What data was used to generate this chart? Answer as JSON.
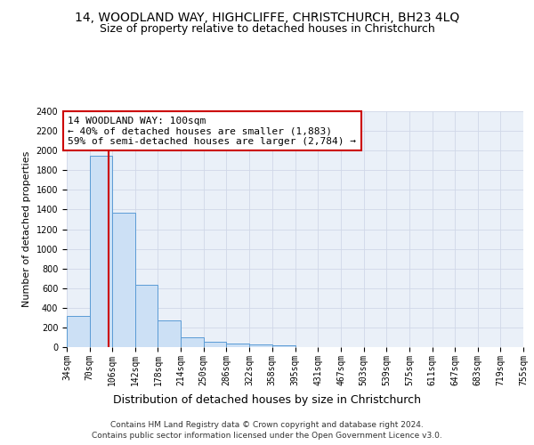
{
  "title_line1": "14, WOODLAND WAY, HIGHCLIFFE, CHRISTCHURCH, BH23 4LQ",
  "title_line2": "Size of property relative to detached houses in Christchurch",
  "xlabel": "Distribution of detached houses by size in Christchurch",
  "ylabel": "Number of detached properties",
  "bar_edges": [
    34,
    70,
    106,
    142,
    178,
    214,
    250,
    286,
    322,
    358,
    395,
    431,
    467,
    503,
    539,
    575,
    611,
    647,
    683,
    719,
    755
  ],
  "bar_heights": [
    315,
    1950,
    1370,
    630,
    275,
    100,
    50,
    38,
    30,
    22,
    0,
    0,
    0,
    0,
    0,
    0,
    0,
    0,
    0,
    0
  ],
  "bar_color": "#cce0f5",
  "bar_edgecolor": "#5b9bd5",
  "grid_color": "#d0d8e8",
  "background_color": "#eaf0f8",
  "vline_x": 100,
  "vline_color": "#cc0000",
  "annotation_text": "14 WOODLAND WAY: 100sqm\n← 40% of detached houses are smaller (1,883)\n59% of semi-detached houses are larger (2,784) →",
  "annotation_box_color": "#cc0000",
  "ylim": [
    0,
    2400
  ],
  "yticks": [
    0,
    200,
    400,
    600,
    800,
    1000,
    1200,
    1400,
    1600,
    1800,
    2000,
    2200,
    2400
  ],
  "tick_labels": [
    "34sqm",
    "70sqm",
    "106sqm",
    "142sqm",
    "178sqm",
    "214sqm",
    "250sqm",
    "286sqm",
    "322sqm",
    "358sqm",
    "395sqm",
    "431sqm",
    "467sqm",
    "503sqm",
    "539sqm",
    "575sqm",
    "611sqm",
    "647sqm",
    "683sqm",
    "719sqm",
    "755sqm"
  ],
  "footnote1": "Contains HM Land Registry data © Crown copyright and database right 2024.",
  "footnote2": "Contains public sector information licensed under the Open Government Licence v3.0.",
  "title_fontsize": 10,
  "subtitle_fontsize": 9,
  "xlabel_fontsize": 9,
  "ylabel_fontsize": 8,
  "tick_fontsize": 7,
  "annotation_fontsize": 8,
  "footnote_fontsize": 6.5
}
